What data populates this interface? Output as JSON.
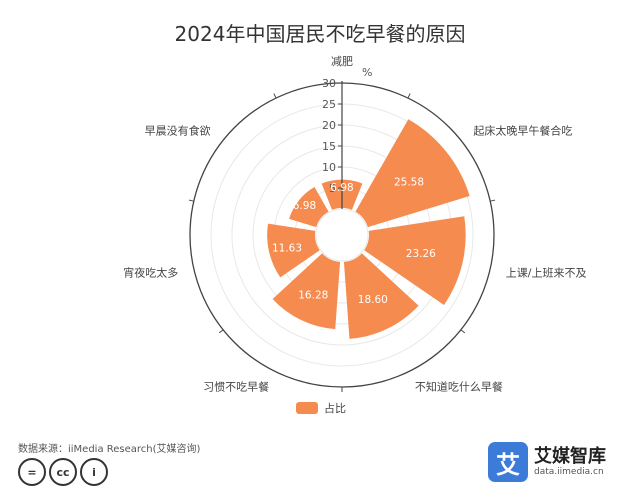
{
  "chart_data": {
    "type": "polar-bar",
    "title": "2024年中国居民不吃早餐的原因",
    "unit": "%",
    "radial_ticks": [
      "5",
      "10",
      "15",
      "20",
      "25",
      "30"
    ],
    "rmax": 30,
    "categories": [
      "减肥",
      "起床太晚早午餐合吃",
      "上课/上班来不及",
      "不知道吃什么早餐",
      "习惯不吃早餐",
      "宵夜吃太多",
      "早晨没有食欲"
    ],
    "values": [
      6.98,
      25.58,
      23.26,
      18.6,
      16.28,
      11.63,
      6.98
    ],
    "value_labels": [
      "6.98",
      "25.58",
      "23.26",
      "18.60",
      "16.28",
      "11.63",
      "6.98"
    ],
    "legend": [
      "占比"
    ],
    "color": "#f58b4f"
  },
  "source": "数据来源：iiMedia Research(艾媒咨询)",
  "license_icons": [
    "equals-icon",
    "cc-icon",
    "person-icon"
  ],
  "license_glyphs": [
    "=",
    "cc",
    "i"
  ],
  "brand": {
    "mark": "艾",
    "name": "艾媒智库",
    "url": "data.iimedia.cn"
  }
}
